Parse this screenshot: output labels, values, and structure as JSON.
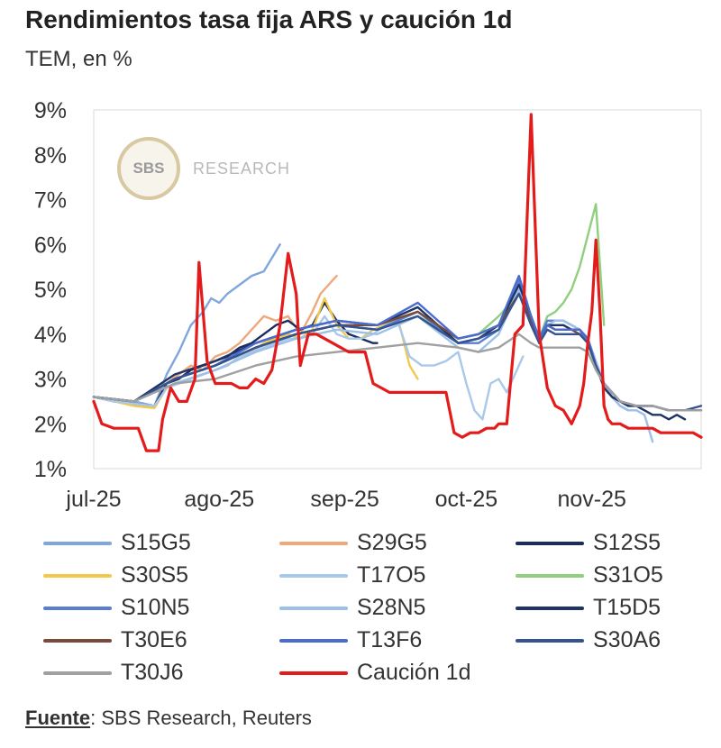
{
  "header": {
    "title": "Rendimientos tasa fija ARS y caución 1d",
    "subtitle": "TEM, en %"
  },
  "watermark": {
    "logo": "SBS",
    "text": "RESEARCH"
  },
  "source": {
    "label": "Fuente",
    "text": ": SBS Research, Reuters"
  },
  "chart_data": {
    "type": "line",
    "title": "Rendimientos tasa fija ARS y caución 1d",
    "subtitle": "TEM, en %",
    "x_ticks": [
      {
        "label": "jul-25",
        "day": 0
      },
      {
        "label": "ago-25",
        "day": 31
      },
      {
        "label": "sep-25",
        "day": 62
      },
      {
        "label": "oct-25",
        "day": 92
      },
      {
        "label": "nov-25",
        "day": 123
      }
    ],
    "x_range": [
      "2025-07-01",
      "2025-11-08"
    ],
    "y_ticks": [
      "1%",
      "2%",
      "3%",
      "4%",
      "5%",
      "6%",
      "7%",
      "8%",
      "9%"
    ],
    "ylim": [
      1,
      9
    ],
    "grid": false,
    "legend_position": "bottom",
    "series": [
      {
        "name": "S15G5",
        "color": "#7fa6dd",
        "x": [
          0,
          5,
          10,
          15,
          18,
          21,
          24,
          27,
          29,
          31,
          33,
          36,
          39,
          42,
          44,
          46
        ],
        "y": [
          2.6,
          2.55,
          2.5,
          2.4,
          3.1,
          3.6,
          4.2,
          4.5,
          4.8,
          4.7,
          4.9,
          5.1,
          5.3,
          5.4,
          5.7,
          6.0
        ]
      },
      {
        "name": "S29G5",
        "color": "#f0a878",
        "x": [
          0,
          5,
          10,
          15,
          18,
          21,
          24,
          27,
          30,
          33,
          36,
          39,
          42,
          45,
          48,
          51,
          54,
          56,
          58,
          60
        ],
        "y": [
          2.6,
          2.5,
          2.45,
          2.4,
          2.9,
          3.1,
          3.3,
          3.2,
          3.5,
          3.6,
          3.8,
          4.1,
          4.4,
          4.3,
          4.4,
          4.0,
          4.5,
          4.9,
          5.1,
          5.3
        ]
      },
      {
        "name": "S12S5",
        "color": "#1b2d5e",
        "x": [
          0,
          5,
          10,
          15,
          18,
          21,
          24,
          27,
          30,
          33,
          36,
          39,
          42,
          45,
          48,
          51,
          54,
          57,
          60,
          63,
          66,
          69,
          70
        ],
        "y": [
          2.6,
          2.5,
          2.45,
          2.4,
          2.9,
          3.0,
          3.2,
          3.3,
          3.4,
          3.5,
          3.7,
          3.8,
          4.0,
          4.2,
          4.3,
          4.1,
          4.2,
          4.7,
          4.3,
          4.0,
          3.9,
          3.8,
          3.8
        ]
      },
      {
        "name": "S30S5",
        "color": "#f2c94c",
        "x": [
          0,
          5,
          10,
          15,
          18,
          21,
          24,
          27,
          30,
          33,
          36,
          39,
          42,
          45,
          48,
          51,
          54,
          57,
          60,
          63,
          66,
          69,
          72,
          75,
          78,
          80
        ],
        "y": [
          2.6,
          2.5,
          2.4,
          2.35,
          2.8,
          2.9,
          3.0,
          3.1,
          3.2,
          3.3,
          3.5,
          3.6,
          3.8,
          3.9,
          4.0,
          3.9,
          4.1,
          4.8,
          4.2,
          3.9,
          3.9,
          4.1,
          4.2,
          4.4,
          3.3,
          3.0
        ]
      },
      {
        "name": "T17O5",
        "color": "#a8c8ec",
        "x": [
          0,
          5,
          10,
          15,
          18,
          21,
          24,
          27,
          30,
          33,
          36,
          39,
          42,
          45,
          48,
          51,
          54,
          57,
          60,
          63,
          66,
          69,
          72,
          75,
          78,
          81,
          84,
          87,
          90,
          92,
          94,
          96,
          98,
          100,
          102,
          104,
          106
        ],
        "y": [
          2.6,
          2.5,
          2.45,
          2.4,
          2.8,
          2.9,
          3.0,
          3.1,
          3.2,
          3.3,
          3.5,
          3.6,
          3.7,
          3.8,
          3.9,
          3.9,
          4.0,
          4.4,
          4.0,
          3.9,
          3.9,
          4.0,
          4.2,
          4.3,
          3.5,
          3.3,
          3.3,
          3.4,
          3.6,
          2.9,
          2.3,
          2.1,
          2.9,
          3.0,
          2.7,
          3.1,
          3.5
        ]
      },
      {
        "name": "S31O5",
        "color": "#8fcf7e",
        "x": [
          0,
          10,
          20,
          30,
          40,
          50,
          60,
          70,
          80,
          90,
          95,
          100,
          105,
          108,
          110,
          112,
          114,
          116,
          118,
          120,
          122,
          124,
          126
        ],
        "y": [
          2.6,
          2.5,
          3.0,
          3.3,
          3.7,
          4.0,
          4.2,
          4.1,
          4.4,
          3.9,
          4.0,
          4.4,
          4.9,
          4.2,
          3.9,
          4.4,
          4.5,
          4.7,
          5.0,
          5.5,
          6.2,
          6.9,
          4.2
        ]
      },
      {
        "name": "S10N5",
        "color": "#5b7fd0",
        "x": [
          0,
          10,
          20,
          30,
          40,
          50,
          60,
          70,
          80,
          90,
          95,
          100,
          105,
          108,
          110,
          112,
          114,
          116,
          118,
          120,
          122,
          124,
          126,
          128,
          130,
          132
        ],
        "y": [
          2.6,
          2.5,
          3.0,
          3.3,
          3.7,
          4.0,
          4.2,
          4.1,
          4.5,
          3.8,
          3.8,
          4.1,
          5.2,
          4.4,
          3.9,
          4.3,
          4.3,
          4.3,
          4.2,
          4.1,
          3.8,
          3.3,
          2.9,
          2.6,
          2.4,
          2.3
        ]
      },
      {
        "name": "S28N5",
        "color": "#9cc0e8",
        "x": [
          0,
          10,
          20,
          30,
          40,
          50,
          60,
          70,
          80,
          90,
          95,
          100,
          105,
          108,
          110,
          112,
          114,
          116,
          118,
          120,
          122,
          124,
          126,
          128,
          130,
          132,
          134,
          136,
          138
        ],
        "y": [
          2.6,
          2.5,
          2.9,
          3.2,
          3.6,
          3.9,
          4.1,
          4.0,
          4.4,
          3.7,
          3.6,
          4.0,
          5.0,
          4.3,
          3.8,
          4.2,
          4.3,
          4.3,
          4.2,
          4.1,
          3.9,
          3.4,
          2.9,
          2.6,
          2.4,
          2.3,
          2.3,
          2.2,
          1.6
        ]
      },
      {
        "name": "T15D5",
        "color": "#1f3466",
        "x": [
          0,
          10,
          20,
          30,
          40,
          50,
          60,
          70,
          80,
          90,
          95,
          100,
          105,
          108,
          110,
          112,
          114,
          116,
          118,
          120,
          122,
          124,
          126,
          128,
          130,
          132,
          134,
          136,
          138,
          140,
          142,
          144,
          146
        ],
        "y": [
          2.6,
          2.5,
          3.1,
          3.4,
          3.8,
          4.1,
          4.3,
          4.2,
          4.6,
          3.8,
          3.9,
          4.2,
          5.1,
          4.4,
          3.9,
          4.2,
          4.2,
          4.2,
          4.1,
          4.1,
          3.9,
          3.3,
          2.8,
          2.6,
          2.5,
          2.4,
          2.4,
          2.3,
          2.2,
          2.2,
          2.1,
          2.2,
          2.1
        ]
      },
      {
        "name": "T30E6",
        "color": "#7a4a3a",
        "x": [
          0,
          10,
          20,
          30,
          40,
          50,
          60,
          70,
          80,
          90,
          95,
          100,
          105,
          108,
          110,
          112,
          114,
          116,
          118,
          120,
          122,
          124,
          126,
          128,
          130,
          134,
          138,
          142,
          146,
          150
        ],
        "y": [
          2.6,
          2.5,
          3.0,
          3.3,
          3.7,
          4.0,
          4.2,
          4.2,
          4.5,
          3.9,
          4.0,
          4.2,
          4.9,
          4.3,
          3.9,
          4.2,
          4.1,
          4.1,
          4.1,
          4.0,
          3.8,
          3.3,
          2.9,
          2.7,
          2.5,
          2.4,
          2.4,
          2.3,
          2.3,
          2.3
        ]
      },
      {
        "name": "T13F6",
        "color": "#4a6ccf",
        "x": [
          0,
          10,
          20,
          30,
          40,
          50,
          60,
          70,
          80,
          90,
          95,
          100,
          105,
          108,
          110,
          112,
          114,
          116,
          118,
          120,
          122,
          124,
          126,
          128,
          130,
          134,
          138,
          142,
          146,
          150
        ],
        "y": [
          2.6,
          2.5,
          3.0,
          3.3,
          3.8,
          4.1,
          4.3,
          4.2,
          4.7,
          3.9,
          4.0,
          4.2,
          5.3,
          4.4,
          3.9,
          4.2,
          4.1,
          4.1,
          4.1,
          4.1,
          3.9,
          3.3,
          2.9,
          2.7,
          2.5,
          2.4,
          2.4,
          2.3,
          2.3,
          2.3
        ]
      },
      {
        "name": "S30A6",
        "color": "#35548f",
        "x": [
          0,
          10,
          20,
          30,
          40,
          50,
          60,
          70,
          80,
          90,
          95,
          100,
          105,
          108,
          110,
          112,
          114,
          116,
          118,
          120,
          122,
          124,
          126,
          128,
          130,
          134,
          138,
          142,
          146,
          150
        ],
        "y": [
          2.6,
          2.5,
          3.0,
          3.3,
          3.7,
          4.0,
          4.2,
          4.1,
          4.4,
          3.8,
          3.9,
          4.1,
          4.9,
          4.2,
          3.8,
          4.1,
          4.0,
          4.0,
          4.0,
          4.0,
          3.8,
          3.3,
          2.9,
          2.7,
          2.5,
          2.4,
          2.4,
          2.3,
          2.3,
          2.4
        ]
      },
      {
        "name": "T30J6",
        "color": "#a0a0a0",
        "x": [
          0,
          10,
          20,
          30,
          40,
          50,
          60,
          70,
          80,
          90,
          95,
          100,
          105,
          108,
          110,
          112,
          114,
          116,
          118,
          120,
          122,
          124,
          126,
          128,
          130,
          134,
          138,
          142,
          146,
          150
        ],
        "y": [
          2.6,
          2.5,
          2.9,
          3.0,
          3.3,
          3.5,
          3.6,
          3.7,
          3.8,
          3.7,
          3.6,
          3.7,
          4.0,
          3.8,
          3.7,
          3.7,
          3.7,
          3.7,
          3.7,
          3.7,
          3.6,
          3.2,
          2.9,
          2.7,
          2.5,
          2.4,
          2.4,
          2.3,
          2.3,
          2.3
        ]
      },
      {
        "name": "Caución 1d",
        "color": "#e31b1b",
        "x": [
          0,
          2,
          5,
          8,
          11,
          13,
          14,
          16,
          17,
          19,
          21,
          23,
          25,
          26,
          28,
          30,
          32,
          34,
          36,
          38,
          40,
          42,
          44,
          46,
          48,
          50,
          51,
          53,
          55,
          57,
          59,
          61,
          63,
          65,
          67,
          69,
          71,
          73,
          75,
          77,
          79,
          81,
          83,
          85,
          87,
          89,
          91,
          93,
          95,
          97,
          99,
          100,
          102,
          104,
          106,
          108,
          110,
          112,
          114,
          116,
          118,
          120,
          121,
          122,
          123,
          124,
          125,
          126,
          127,
          128,
          130,
          132,
          134,
          136,
          138,
          140,
          142,
          144,
          146,
          148,
          150
        ],
        "y": [
          2.5,
          2.0,
          1.9,
          1.9,
          1.9,
          1.4,
          1.4,
          1.4,
          2.1,
          2.8,
          2.5,
          2.5,
          3.0,
          5.6,
          3.4,
          2.9,
          2.9,
          2.9,
          2.8,
          2.8,
          3.0,
          2.9,
          3.2,
          4.2,
          5.8,
          4.9,
          3.3,
          4.0,
          4.0,
          3.9,
          3.8,
          3.7,
          3.6,
          3.6,
          3.6,
          2.9,
          2.8,
          2.7,
          2.7,
          2.7,
          2.7,
          2.7,
          2.7,
          2.7,
          2.7,
          1.8,
          1.7,
          1.8,
          1.8,
          1.9,
          1.9,
          2.0,
          2.0,
          4.0,
          4.2,
          8.9,
          4.0,
          2.8,
          2.4,
          2.3,
          2.0,
          2.4,
          2.9,
          3.8,
          4.5,
          6.1,
          4.5,
          2.4,
          2.1,
          2.0,
          2.0,
          1.9,
          1.9,
          1.9,
          1.9,
          1.8,
          1.8,
          1.8,
          1.8,
          1.8,
          1.7
        ]
      }
    ]
  }
}
